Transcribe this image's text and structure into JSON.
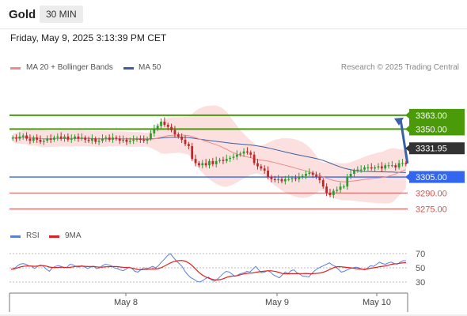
{
  "header": {
    "symbol": "Gold",
    "timeframe": "30 MIN"
  },
  "timestamp": "Friday, May 9, 2025 3:13:39 PM CET",
  "legend": {
    "ma20_label": "MA 20 + Bollinger Bands",
    "ma50_label": "MA 50",
    "credit": "Research © 2025 Trading Central"
  },
  "rsi_legend": {
    "rsi_label": "RSI",
    "ma_label": "9MA"
  },
  "colors": {
    "ma20": "#f08a8a",
    "ma50": "#3b5f9a",
    "band_fill": "#fbdada",
    "bull": "#2f9a2f",
    "bear": "#c02626",
    "support_blue": "#3366ee",
    "resistance_green": "#4a9a0a",
    "support_red": "#e05050",
    "rsi": "#5b7fe0",
    "rsi_ma": "#e02020",
    "arrow": "#3a60a8",
    "price_tag": "#333333"
  },
  "chart_data": {
    "type": "candlestick",
    "y_range": [
      3262,
      3400
    ],
    "current_price": "3331.95",
    "levels": [
      {
        "value": 3363.0,
        "label": "3363.00",
        "kind": "resistance"
      },
      {
        "value": 3350.0,
        "label": "3350.00",
        "kind": "resistance"
      },
      {
        "value": 3305.0,
        "label": "3305.00",
        "kind": "pivot"
      },
      {
        "value": 3290.0,
        "label": "3290.00",
        "kind": "support"
      },
      {
        "value": 3275.0,
        "label": "3275.00",
        "kind": "support"
      }
    ],
    "x_ticks": [
      "May 8",
      "May 9",
      "May 10"
    ],
    "candles_close": [
      3342,
      3341,
      3343,
      3344,
      3341,
      3339,
      3342,
      3340,
      3338,
      3339,
      3341,
      3340,
      3342,
      3343,
      3341,
      3343,
      3340,
      3341,
      3343,
      3341,
      3342,
      3340,
      3339,
      3341,
      3338,
      3339,
      3341,
      3342,
      3340,
      3342,
      3341,
      3339,
      3340,
      3338,
      3339,
      3340,
      3341,
      3340,
      3339,
      3341,
      3346,
      3350,
      3353,
      3357,
      3354,
      3352,
      3349,
      3345,
      3343,
      3340,
      3336,
      3334,
      3322,
      3318,
      3316,
      3318,
      3316,
      3320,
      3317,
      3320,
      3321,
      3320,
      3322,
      3323,
      3324,
      3326,
      3327,
      3329,
      3328,
      3326,
      3318,
      3315,
      3313,
      3311,
      3305,
      3303,
      3302,
      3303,
      3301,
      3303,
      3303,
      3304,
      3303,
      3305,
      3306,
      3308,
      3309,
      3307,
      3305,
      3302,
      3296,
      3290,
      3288,
      3292,
      3293,
      3296,
      3296,
      3305,
      3308,
      3311,
      3312,
      3312,
      3314,
      3314,
      3313,
      3314,
      3315,
      3313,
      3316,
      3316,
      3316,
      3314,
      3318,
      3318,
      3317
    ],
    "rsi": {
      "y_ticks": [
        30,
        50,
        70
      ],
      "rsi_values": [
        48,
        49,
        52,
        55,
        56,
        55,
        53,
        52,
        49,
        52,
        54,
        52,
        48,
        45,
        50,
        52,
        53,
        52,
        50,
        51,
        55,
        54,
        52,
        51,
        53,
        51,
        49,
        51,
        52,
        49,
        50,
        53,
        55,
        54,
        53,
        50,
        49,
        47,
        46,
        48,
        51,
        49,
        45,
        44,
        47,
        50,
        49,
        50,
        52,
        50,
        53,
        58,
        62,
        67,
        70,
        65,
        60,
        56,
        52,
        45,
        40,
        36,
        34,
        31,
        30,
        32,
        35,
        37,
        33,
        31,
        34,
        38,
        42,
        45,
        44,
        41,
        38,
        40,
        42,
        43,
        45,
        44,
        48,
        52,
        47,
        43,
        44,
        46,
        44,
        40,
        38,
        36,
        40,
        44,
        42,
        46,
        47,
        43,
        41,
        38,
        38,
        37,
        42,
        46,
        49,
        51,
        53,
        55,
        57,
        54,
        52,
        48,
        44,
        45,
        47,
        49,
        50,
        51,
        50,
        48,
        47,
        50,
        53,
        52,
        55,
        58,
        56,
        55,
        57,
        58,
        56,
        55,
        58,
        60,
        60
      ]
    }
  }
}
